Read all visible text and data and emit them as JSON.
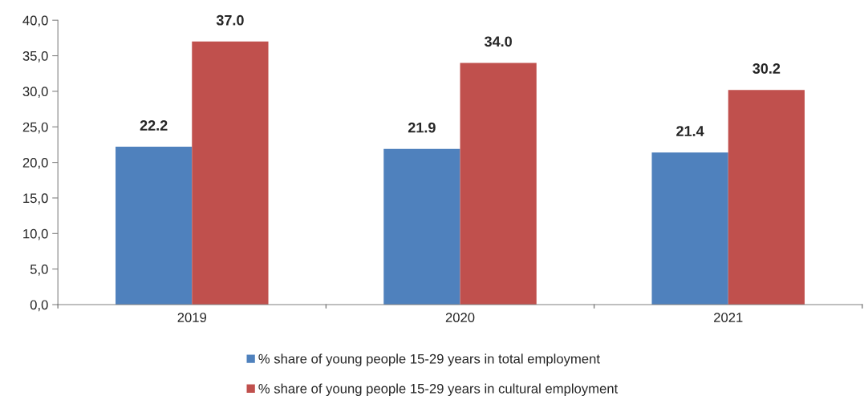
{
  "chart_data": {
    "type": "bar",
    "categories": [
      "2019",
      "2020",
      "2021"
    ],
    "series": [
      {
        "name": "% share of young people 15-29 years in total employment",
        "color": "#4f81bd",
        "values": [
          22.2,
          21.9,
          21.4
        ],
        "value_labels": [
          "22.2",
          "21.9",
          "21.4"
        ]
      },
      {
        "name": "% share of young people 15-29 years in cultural employment",
        "color": "#c0504d",
        "values": [
          37.0,
          34.0,
          30.2
        ],
        "value_labels": [
          "37.0",
          "34.0",
          "30.2"
        ]
      }
    ],
    "ylim": [
      0,
      40
    ],
    "yticks": [
      {
        "value": 0,
        "label": "0,0"
      },
      {
        "value": 5,
        "label": "5,0"
      },
      {
        "value": 10,
        "label": "10,0"
      },
      {
        "value": 15,
        "label": "15,0"
      },
      {
        "value": 20,
        "label": "20,0"
      },
      {
        "value": 25,
        "label": "25,0"
      },
      {
        "value": 30,
        "label": "30,0"
      },
      {
        "value": 35,
        "label": "35,0"
      },
      {
        "value": 40,
        "label": "40,0"
      }
    ],
    "grid": false,
    "legend": "bottom"
  }
}
